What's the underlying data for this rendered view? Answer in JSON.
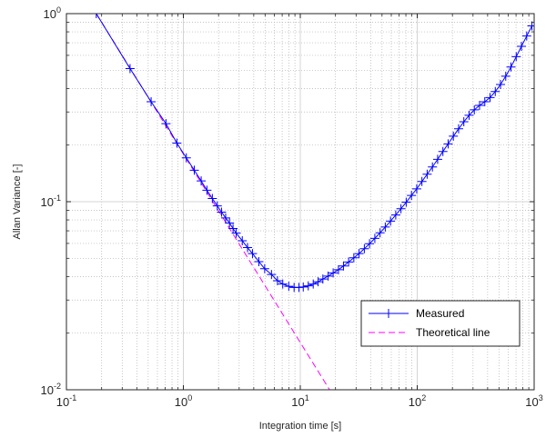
{
  "chart_data": {
    "type": "line",
    "xscale": "log",
    "yscale": "log",
    "xlim": [
      0.1,
      1000
    ],
    "ylim": [
      0.01,
      1
    ],
    "xlabel": "Integration time [s]",
    "ylabel": "Allan Variance [-]",
    "x_ticks": [
      {
        "base": "10",
        "exp": "-1",
        "value": 0.1
      },
      {
        "base": "10",
        "exp": "0",
        "value": 1
      },
      {
        "base": "10",
        "exp": "1",
        "value": 10
      },
      {
        "base": "10",
        "exp": "2",
        "value": 100
      },
      {
        "base": "10",
        "exp": "3",
        "value": 1000
      }
    ],
    "y_ticks": [
      {
        "base": "10",
        "exp": "-2",
        "value": 0.01
      },
      {
        "base": "10",
        "exp": "-1",
        "value": 0.1
      },
      {
        "base": "10",
        "exp": "0",
        "value": 1
      }
    ],
    "grid": true,
    "minor_grid": true,
    "legend_position": "bottom-right",
    "series": [
      {
        "name": "Measured",
        "color": "#0000ff",
        "line_style": "solid",
        "marker": "+",
        "x": [
          0.18,
          0.35,
          0.53,
          0.71,
          0.88,
          1.06,
          1.24,
          1.42,
          1.59,
          1.77,
          1.95,
          2.12,
          2.3,
          2.48,
          2.66,
          2.83,
          3.19,
          3.54,
          3.9,
          4.42,
          4.96,
          5.67,
          6.38,
          7.08,
          7.97,
          8.85,
          9.74,
          10.6,
          11.7,
          12.9,
          14.2,
          15.6,
          17.3,
          19.1,
          21.2,
          23.4,
          25.9,
          28.7,
          31.8,
          35.3,
          39.1,
          43.4,
          48.1,
          53.3,
          59.1,
          65.5,
          72.6,
          80.5,
          89.3,
          99.0,
          109.7,
          121.6,
          134.9,
          149.5,
          165.8,
          183.8,
          203.7,
          225.9,
          250.4,
          277.6,
          307.8,
          341.2,
          378.3,
          419.4,
          465,
          515.5,
          571.5,
          633.5,
          702.4,
          778.7,
          863.3,
          957
        ],
        "y": [
          1.0,
          0.51,
          0.34,
          0.26,
          0.205,
          0.171,
          0.147,
          0.129,
          0.115,
          0.104,
          0.095,
          0.088,
          0.082,
          0.077,
          0.072,
          0.068,
          0.062,
          0.057,
          0.053,
          0.048,
          0.044,
          0.041,
          0.038,
          0.0365,
          0.0355,
          0.035,
          0.035,
          0.0352,
          0.0357,
          0.0365,
          0.0375,
          0.0388,
          0.0402,
          0.0418,
          0.0435,
          0.0455,
          0.0478,
          0.0503,
          0.053,
          0.0562,
          0.0598,
          0.0638,
          0.0683,
          0.0733,
          0.0788,
          0.085,
          0.0918,
          0.0993,
          0.108,
          0.117,
          0.128,
          0.14,
          0.153,
          0.168,
          0.185,
          0.203,
          0.223,
          0.244,
          0.266,
          0.288,
          0.308,
          0.325,
          0.34,
          0.358,
          0.385,
          0.42,
          0.465,
          0.52,
          0.59,
          0.67,
          0.76,
          0.86
        ]
      },
      {
        "name": "Theoretical line",
        "color": "#ff00ff",
        "line_style": "dashed",
        "marker": "none",
        "x": [
          0.18,
          17.8
        ],
        "y": [
          1.0,
          0.01
        ]
      }
    ]
  }
}
